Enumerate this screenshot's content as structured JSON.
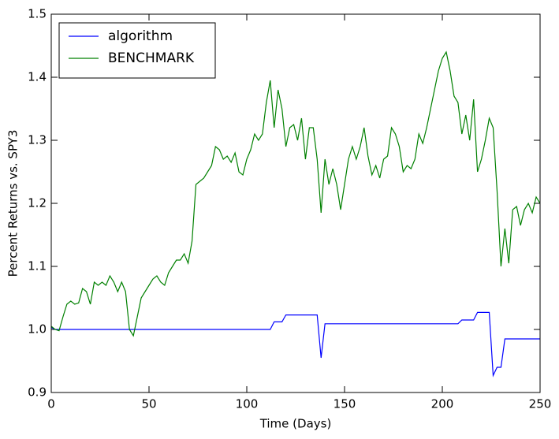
{
  "chart_data": {
    "type": "line",
    "xlabel": "Time (Days)",
    "ylabel": "Percent Returns vs. SPY3",
    "x": [
      0,
      2,
      4,
      6,
      8,
      10,
      12,
      14,
      16,
      18,
      20,
      22,
      24,
      26,
      28,
      30,
      32,
      34,
      36,
      38,
      40,
      42,
      44,
      46,
      48,
      50,
      52,
      54,
      56,
      58,
      60,
      62,
      64,
      66,
      68,
      70,
      72,
      74,
      76,
      78,
      80,
      82,
      84,
      86,
      88,
      90,
      92,
      94,
      96,
      98,
      100,
      102,
      104,
      106,
      108,
      110,
      112,
      114,
      116,
      118,
      120,
      122,
      124,
      126,
      128,
      130,
      132,
      134,
      136,
      138,
      140,
      142,
      144,
      146,
      148,
      150,
      152,
      154,
      156,
      158,
      160,
      162,
      164,
      166,
      168,
      170,
      172,
      174,
      176,
      178,
      180,
      182,
      184,
      186,
      188,
      190,
      192,
      194,
      196,
      198,
      200,
      202,
      204,
      206,
      208,
      210,
      212,
      214,
      216,
      218,
      220,
      222,
      224,
      226,
      228,
      230,
      232,
      234,
      236,
      238,
      240,
      242,
      244,
      246,
      248,
      250
    ],
    "series": [
      {
        "name": "algorithm",
        "color": "#0000ff",
        "values": [
          1.003,
          1.0,
          1.0,
          1.0,
          1.0,
          1.0,
          1.0,
          1.0,
          1.0,
          1.0,
          1.0,
          1.0,
          1.0,
          1.0,
          1.0,
          1.0,
          1.0,
          1.0,
          1.0,
          1.0,
          1.0,
          1.0,
          1.0,
          1.0,
          1.0,
          1.0,
          1.0,
          1.0,
          1.0,
          1.0,
          1.0,
          1.0,
          1.0,
          1.0,
          1.0,
          1.0,
          1.0,
          1.0,
          1.0,
          1.0,
          1.0,
          1.0,
          1.0,
          1.0,
          1.0,
          1.0,
          1.0,
          1.0,
          1.0,
          1.0,
          1.0,
          1.0,
          1.0,
          1.0,
          1.0,
          1.0,
          1.0,
          1.012,
          1.012,
          1.012,
          1.023,
          1.023,
          1.023,
          1.023,
          1.023,
          1.023,
          1.023,
          1.023,
          1.023,
          0.955,
          1.009,
          1.009,
          1.009,
          1.009,
          1.009,
          1.009,
          1.009,
          1.009,
          1.009,
          1.009,
          1.009,
          1.009,
          1.009,
          1.009,
          1.009,
          1.009,
          1.009,
          1.009,
          1.009,
          1.009,
          1.009,
          1.009,
          1.009,
          1.009,
          1.009,
          1.009,
          1.009,
          1.009,
          1.009,
          1.009,
          1.009,
          1.009,
          1.009,
          1.009,
          1.009,
          1.015,
          1.015,
          1.015,
          1.015,
          1.027,
          1.027,
          1.027,
          1.027,
          0.927,
          0.94,
          0.94,
          0.985,
          0.985,
          0.985,
          0.985,
          0.985,
          0.985,
          0.985,
          0.985,
          0.985,
          0.985
        ]
      },
      {
        "name": "BENCHMARK",
        "color": "#008000",
        "values": [
          1.005,
          1.0,
          0.998,
          1.02,
          1.04,
          1.045,
          1.04,
          1.042,
          1.065,
          1.06,
          1.04,
          1.075,
          1.07,
          1.075,
          1.07,
          1.085,
          1.075,
          1.06,
          1.075,
          1.06,
          1.0,
          0.99,
          1.02,
          1.05,
          1.06,
          1.07,
          1.08,
          1.085,
          1.075,
          1.07,
          1.09,
          1.1,
          1.11,
          1.11,
          1.12,
          1.105,
          1.14,
          1.23,
          1.235,
          1.24,
          1.25,
          1.26,
          1.29,
          1.285,
          1.27,
          1.275,
          1.265,
          1.28,
          1.25,
          1.245,
          1.27,
          1.285,
          1.31,
          1.3,
          1.31,
          1.36,
          1.395,
          1.32,
          1.38,
          1.35,
          1.29,
          1.32,
          1.325,
          1.3,
          1.335,
          1.27,
          1.32,
          1.32,
          1.27,
          1.185,
          1.27,
          1.23,
          1.255,
          1.23,
          1.19,
          1.23,
          1.27,
          1.29,
          1.27,
          1.29,
          1.32,
          1.275,
          1.245,
          1.26,
          1.24,
          1.27,
          1.275,
          1.32,
          1.31,
          1.29,
          1.25,
          1.26,
          1.255,
          1.27,
          1.31,
          1.295,
          1.32,
          1.35,
          1.38,
          1.41,
          1.43,
          1.44,
          1.41,
          1.37,
          1.36,
          1.31,
          1.34,
          1.3,
          1.365,
          1.25,
          1.27,
          1.3,
          1.335,
          1.32,
          1.22,
          1.1,
          1.16,
          1.105,
          1.19,
          1.195,
          1.165,
          1.19,
          1.2,
          1.185,
          1.21,
          1.2
        ]
      }
    ],
    "xlim": [
      0,
      250
    ],
    "xticks": [
      0,
      50,
      100,
      150,
      200,
      250
    ],
    "ylim": [
      0.9,
      1.5
    ],
    "yticks": [
      0.9,
      {
        "value": 1.0,
        "label": "1.0"
      },
      1.1,
      1.2,
      1.3,
      1.4,
      1.5
    ],
    "legend": "upper left"
  }
}
